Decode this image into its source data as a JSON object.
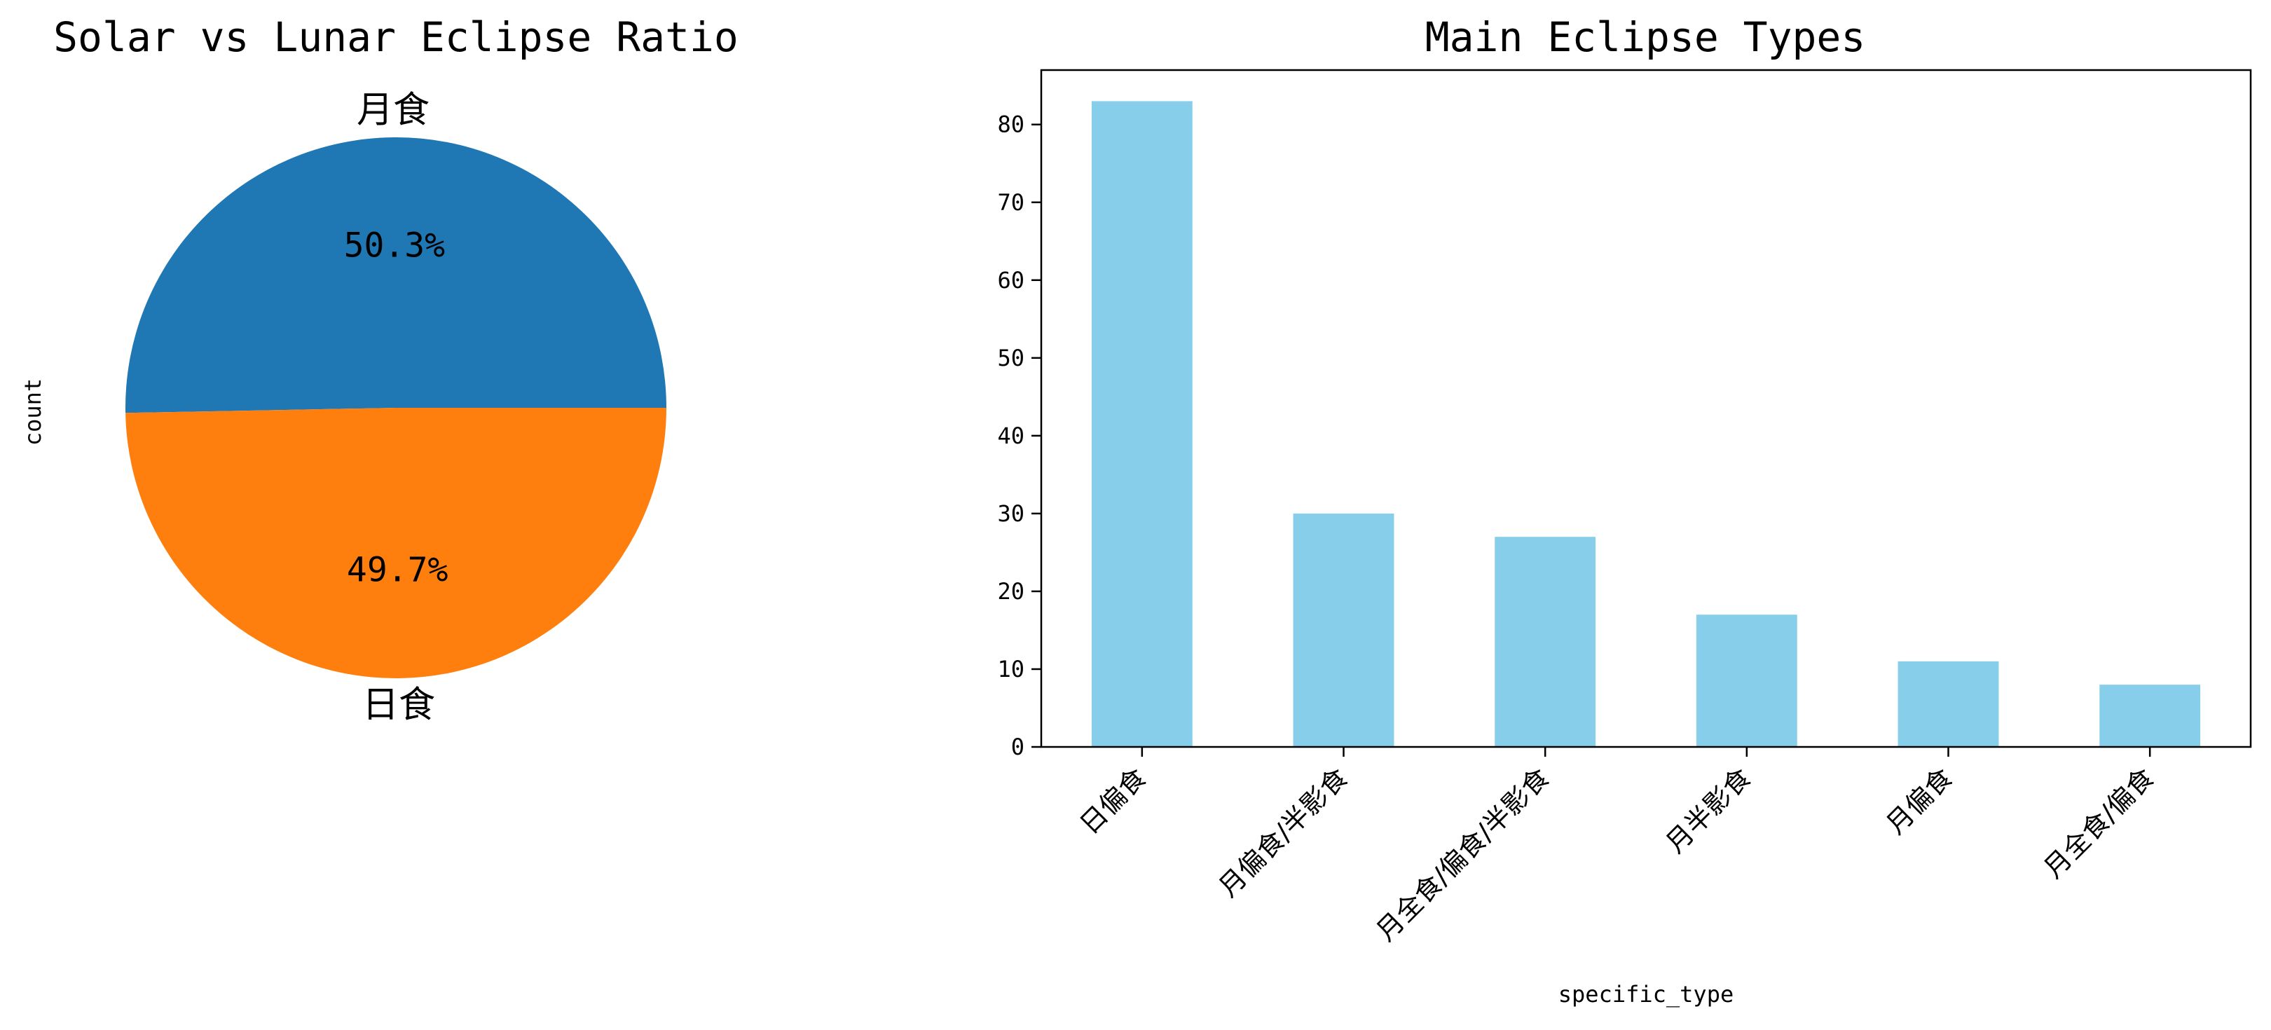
{
  "chart_data": [
    {
      "type": "pie",
      "title": "Solar vs Lunar Eclipse Ratio",
      "ylabel": "count",
      "slices": [
        {
          "label": "月食",
          "value": 50.3,
          "display": "50.3%",
          "color": "#1f77b4"
        },
        {
          "label": "日食",
          "value": 49.7,
          "display": "49.7%",
          "color": "#ff7f0e"
        }
      ]
    },
    {
      "type": "bar",
      "title": "Main Eclipse Types",
      "xlabel": "specific_type",
      "ylabel": "",
      "categories": [
        "日偏食",
        "月偏食/半影食",
        "月全食/偏食/半影食",
        "月半影食",
        "月偏食",
        "月全食/偏食"
      ],
      "values": [
        83,
        30,
        27,
        17,
        11,
        8
      ],
      "ylim": [
        0,
        87
      ],
      "yticks": [
        0,
        10,
        20,
        30,
        40,
        50,
        60,
        70,
        80
      ],
      "color": "#87ceeb",
      "grid": false
    }
  ]
}
